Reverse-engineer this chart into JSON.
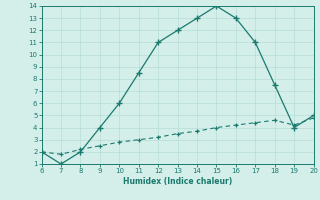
{
  "x_upper": [
    6,
    7,
    8,
    9,
    10,
    11,
    12,
    13,
    14,
    15,
    16,
    17,
    18,
    19,
    20
  ],
  "y_upper": [
    2,
    1,
    2,
    4,
    6,
    8.5,
    11,
    12,
    13,
    14,
    13,
    11,
    7.5,
    4,
    5
  ],
  "x_lower": [
    6,
    7,
    8,
    9,
    10,
    11,
    12,
    13,
    14,
    15,
    16,
    17,
    18,
    19,
    20
  ],
  "y_lower": [
    2,
    1.8,
    2.2,
    2.5,
    2.8,
    3.0,
    3.2,
    3.5,
    3.7,
    4.0,
    4.2,
    4.4,
    4.6,
    4.2,
    4.8
  ],
  "xlabel": "Humidex (Indice chaleur)",
  "xlim": [
    6,
    20
  ],
  "ylim": [
    1,
    14
  ],
  "yticks": [
    1,
    2,
    3,
    4,
    5,
    6,
    7,
    8,
    9,
    10,
    11,
    12,
    13,
    14
  ],
  "xticks": [
    6,
    7,
    8,
    9,
    10,
    11,
    12,
    13,
    14,
    15,
    16,
    17,
    18,
    19,
    20
  ],
  "line_color": "#1a7a6e",
  "bg_color": "#d4eeea",
  "grid_color": "#b8ddd8"
}
